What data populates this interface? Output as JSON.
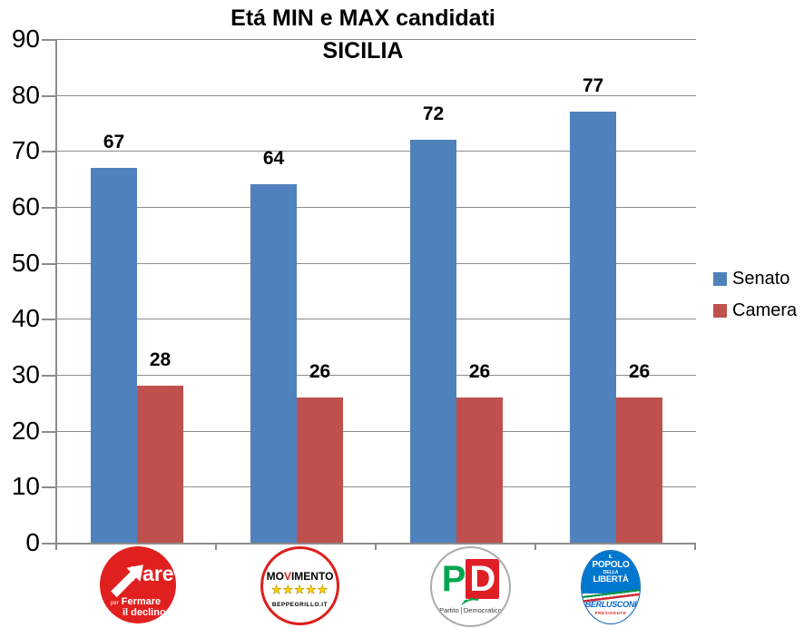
{
  "chart_data": {
    "type": "bar",
    "title": "Etá MIN e MAX candidati",
    "subtitle": "SICILIA",
    "categories": [
      "Fare per Fermare il declino",
      "Movimento 5 Stelle",
      "Partito Democratico",
      "Il Popolo della Libertà - Berlusconi"
    ],
    "series": [
      {
        "name": "Senato",
        "color": "#4F81BD",
        "values": [
          67,
          64,
          72,
          77
        ]
      },
      {
        "name": "Camera",
        "color": "#C0504D",
        "values": [
          28,
          26,
          26,
          26
        ]
      }
    ],
    "ylim": [
      0,
      90
    ],
    "ytick_step": 10,
    "grid": true,
    "data_labels": true,
    "legend_position": "right"
  },
  "colors": {
    "gridline": "#8C8C8C",
    "fare_red": "#E0201F",
    "m5s_red": "#DD1F1A",
    "m5s_star_yellow": "#FFD800",
    "pd_green": "#00A64F",
    "pd_red": "#E01E26",
    "pdl_blue": "#0077CE",
    "flag_green": "#009246",
    "flag_red": "#CE2B37"
  },
  "logos": {
    "fare": {
      "name": "Fare",
      "sub_small": "per",
      "sub_bold": "Fermare",
      "sub2": "il declino"
    },
    "m5s": {
      "name_pre": "MO",
      "name_v": "V",
      "name_post": "IMENTO",
      "stars": "★★★★★",
      "website": "BEPPEGRILLO.IT"
    },
    "pd": {
      "p": "P",
      "d": "D",
      "sub_left": "Partito",
      "sub_right": "Democratico"
    },
    "pdl": {
      "line1": "IL",
      "line2": "POPOLO",
      "line3": "DELLA",
      "line4": "LIBERTÀ",
      "leader": "BERLUSCONI",
      "role": "PRESIDENTE"
    }
  }
}
